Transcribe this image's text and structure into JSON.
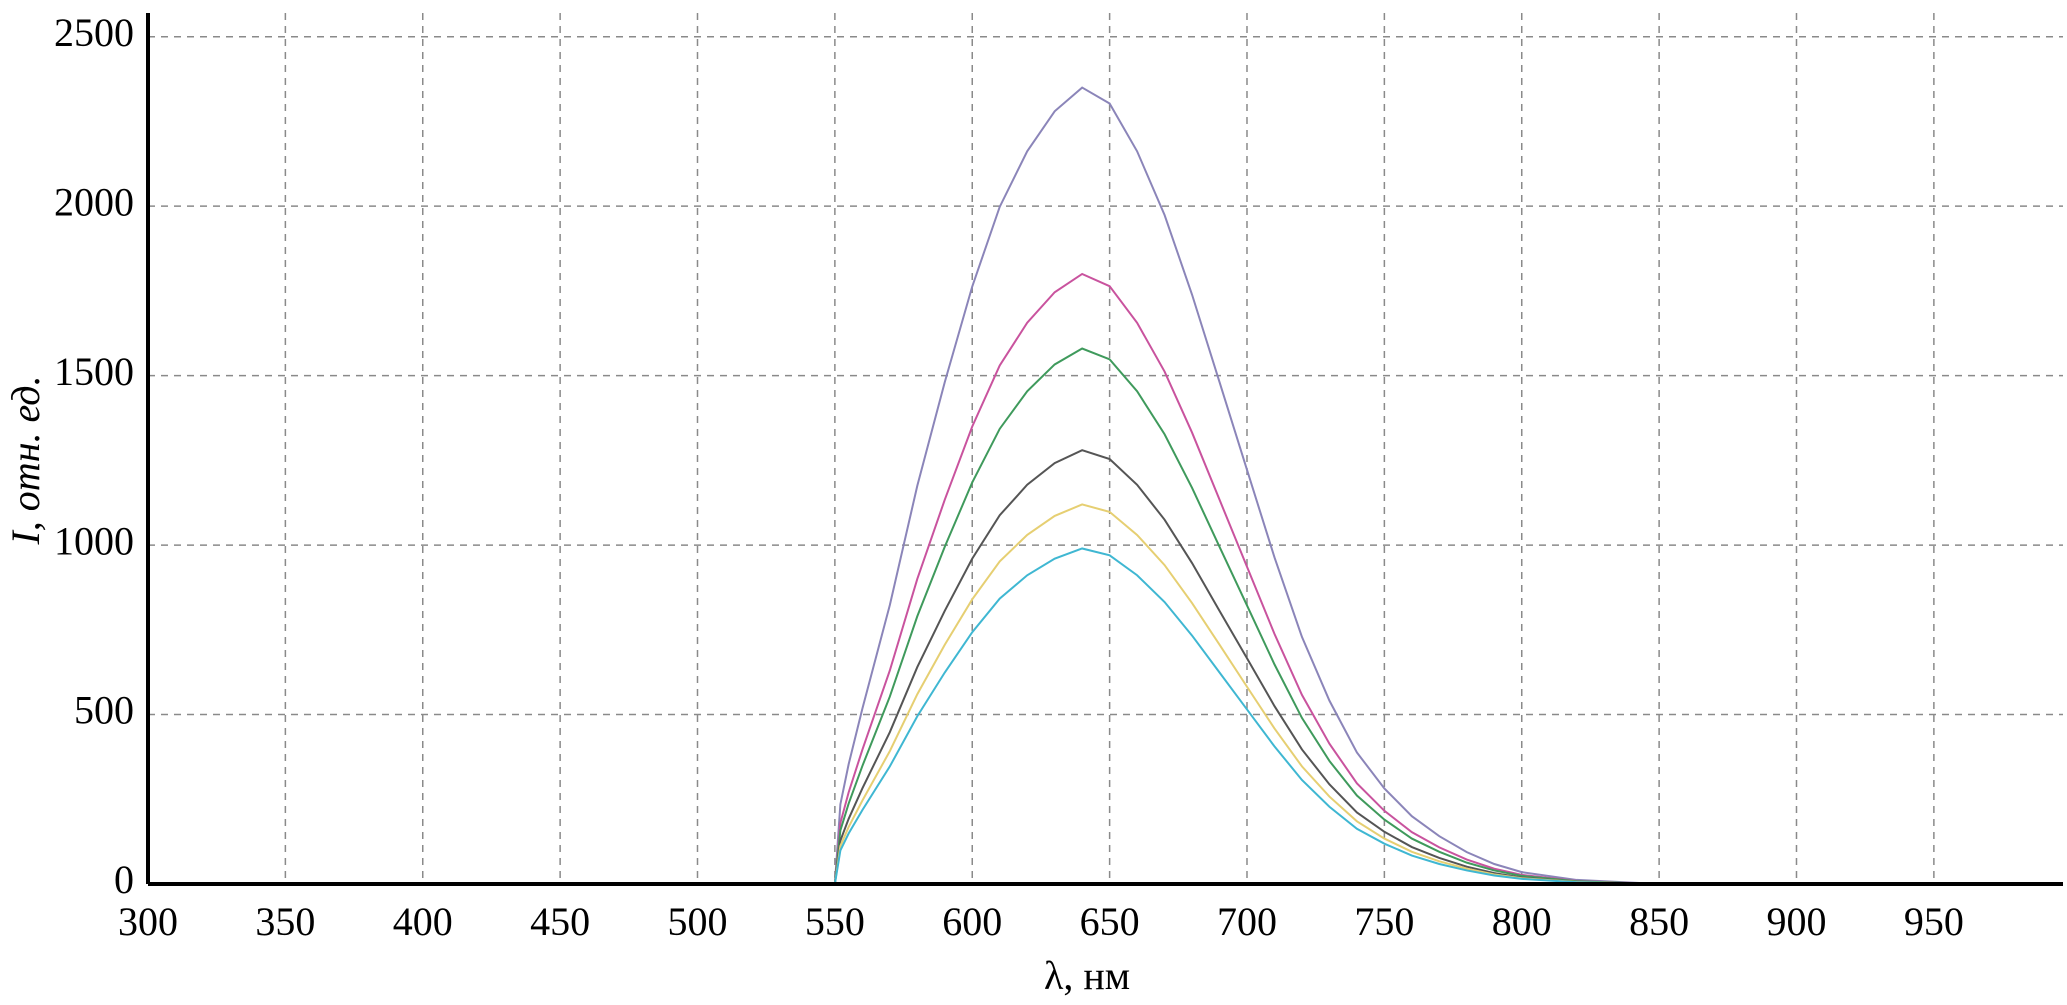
{
  "chart_data": {
    "type": "line",
    "x_label": "λ, нм",
    "y_label": "I, отн. ед.",
    "x": [
      300,
      400,
      500,
      550,
      552,
      555,
      560,
      570,
      580,
      590,
      600,
      610,
      620,
      630,
      640,
      650,
      660,
      670,
      680,
      690,
      700,
      710,
      720,
      730,
      740,
      750,
      760,
      770,
      780,
      790,
      800,
      820,
      850,
      900,
      950,
      997
    ],
    "series": [
      {
        "color": "#8b85b9",
        "values": [
          0,
          0,
          0,
          0,
          235,
          353,
          517,
          823,
          1175,
          1481,
          1763,
          1998,
          2162,
          2280,
          2350,
          2303,
          2162,
          1974,
          1739,
          1481,
          1222,
          964,
          729,
          541,
          388,
          282,
          200,
          141,
          94,
          59,
          35,
          12,
          0,
          0,
          0,
          0
        ]
      },
      {
        "color": "#c9539e",
        "values": [
          0,
          0,
          0,
          0,
          180,
          270,
          396,
          630,
          900,
          1134,
          1350,
          1530,
          1656,
          1746,
          1800,
          1764,
          1656,
          1512,
          1332,
          1134,
          936,
          738,
          558,
          414,
          297,
          216,
          153,
          108,
          72,
          45,
          27,
          9,
          0,
          0,
          0,
          0
        ]
      },
      {
        "color": "#3f9a5c",
        "values": [
          0,
          0,
          0,
          0,
          158,
          237,
          348,
          553,
          790,
          995,
          1185,
          1343,
          1454,
          1533,
          1580,
          1548,
          1454,
          1327,
          1169,
          995,
          822,
          648,
          490,
          363,
          261,
          190,
          134,
          95,
          63,
          40,
          24,
          8,
          0,
          0,
          0,
          0
        ]
      },
      {
        "color": "#555555",
        "values": [
          0,
          0,
          0,
          0,
          128,
          192,
          282,
          448,
          640,
          806,
          960,
          1088,
          1178,
          1242,
          1280,
          1254,
          1178,
          1075,
          947,
          806,
          666,
          525,
          397,
          294,
          211,
          154,
          109,
          77,
          51,
          32,
          19,
          6,
          0,
          0,
          0,
          0
        ]
      },
      {
        "color": "#e6cf72",
        "values": [
          0,
          0,
          0,
          0,
          112,
          168,
          246,
          392,
          560,
          706,
          840,
          952,
          1030,
          1086,
          1120,
          1098,
          1030,
          941,
          829,
          706,
          582,
          459,
          347,
          258,
          185,
          134,
          95,
          67,
          45,
          28,
          17,
          6,
          0,
          0,
          0,
          0
        ]
      },
      {
        "color": "#3fb7d2",
        "values": [
          0,
          0,
          0,
          0,
          99,
          149,
          218,
          347,
          495,
          624,
          743,
          842,
          911,
          960,
          990,
          970,
          911,
          832,
          733,
          624,
          515,
          406,
          307,
          228,
          163,
          119,
          84,
          59,
          40,
          25,
          15,
          5,
          0,
          0,
          0,
          0
        ]
      }
    ],
    "xlim": [
      300,
      997
    ],
    "ylim": [
      0,
      2570
    ],
    "xticks": [
      300,
      350,
      400,
      450,
      500,
      550,
      600,
      650,
      700,
      750,
      800,
      850,
      900,
      950
    ],
    "yticks": [
      0,
      500,
      1000,
      1500,
      2000,
      2500
    ],
    "grid": true
  }
}
